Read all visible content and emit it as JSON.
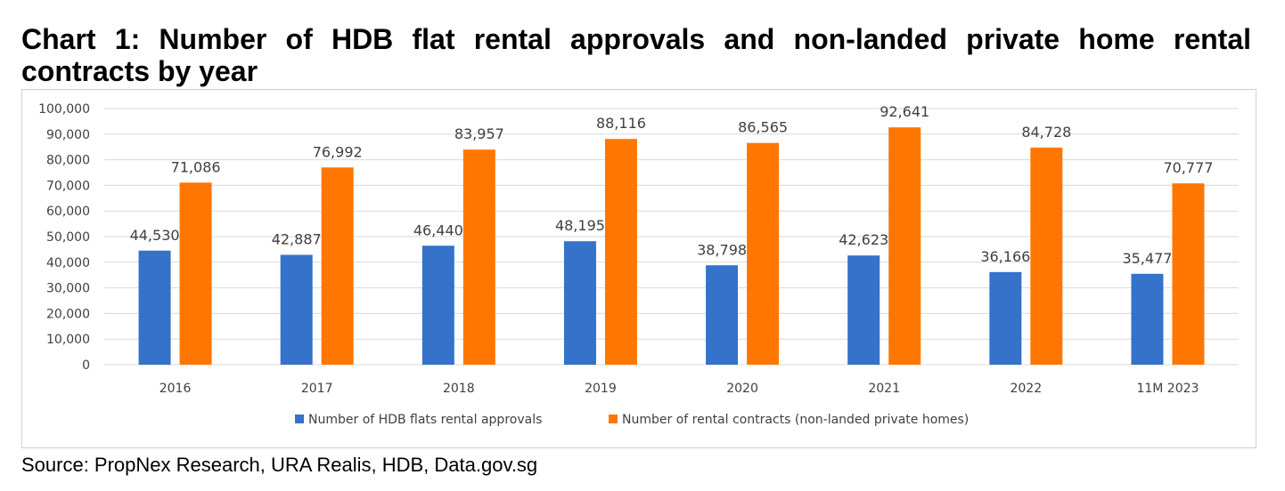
{
  "title": "Chart 1: Number of HDB flat rental approvals and non-landed private home rental contracts by year",
  "source": "Source: PropNex Research, URA Realis, HDB, Data.gov.sg",
  "colors": {
    "hdb": "#3572C9",
    "private": "#FF7700",
    "grid": "#D9D9D9",
    "text": "#404040"
  },
  "chart_data": {
    "type": "bar",
    "title": "",
    "xlabel": "",
    "ylabel": "",
    "ylim": [
      0,
      100000
    ],
    "yticks": [
      0,
      10000,
      20000,
      30000,
      40000,
      50000,
      60000,
      70000,
      80000,
      90000,
      100000
    ],
    "ytick_labels": [
      "0",
      "10,000",
      "20,000",
      "30,000",
      "40,000",
      "50,000",
      "60,000",
      "70,000",
      "80,000",
      "90,000",
      "100,000"
    ],
    "categories": [
      "2016",
      "2017",
      "2018",
      "2019",
      "2020",
      "2021",
      "2022",
      "11M 2023"
    ],
    "grid": true,
    "legend_position": "bottom",
    "series": [
      {
        "name": "Number of HDB flats rental approvals",
        "values": [
          44530,
          42887,
          46440,
          48195,
          38798,
          42623,
          36166,
          35477
        ],
        "labels": [
          "44,530",
          "42,887",
          "46,440",
          "48,195",
          "38,798",
          "42,623",
          "36,166",
          "35,477"
        ]
      },
      {
        "name": "Number of rental contracts (non-landed private homes)",
        "values": [
          71086,
          76992,
          83957,
          88116,
          86565,
          92641,
          84728,
          70777
        ],
        "labels": [
          "71,086",
          "76,992",
          "83,957",
          "88,116",
          "86,565",
          "92,641",
          "84,728",
          "70,777"
        ]
      }
    ]
  }
}
